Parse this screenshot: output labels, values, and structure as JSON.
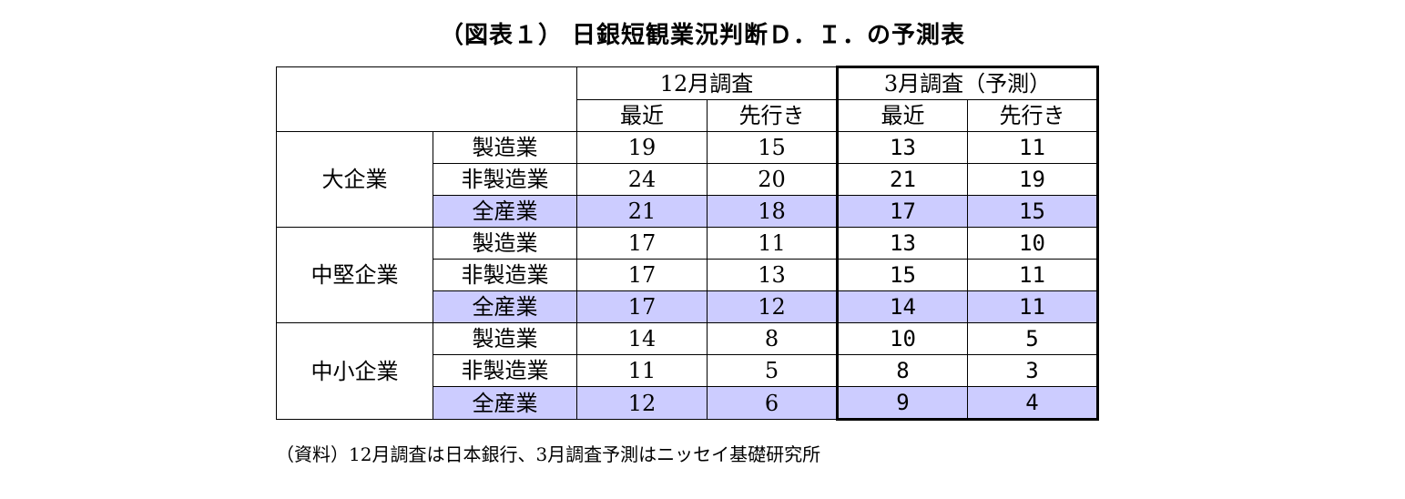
{
  "title": "（図表１） 日銀短観業況判断Ｄ．Ｉ．の予測表",
  "source": "（資料）12月調査は日本銀行、3月調査予測はニッセイ基礎研究所",
  "colors": {
    "total_row_bg": "#ccccff",
    "border": "#000000"
  },
  "chart_data": {
    "type": "table",
    "title": "（図表１） 日銀短観業況判断Ｄ．Ｉ．の予測表",
    "column_groups": [
      {
        "label": "12月調査",
        "columns": [
          "最近",
          "先行き"
        ]
      },
      {
        "label": "3月調査（予測）",
        "columns": [
          "最近",
          "先行き"
        ]
      }
    ],
    "row_groups": [
      {
        "label": "大企業",
        "rows": [
          {
            "label": "製造業",
            "values": [
              "19",
              "15",
              "13",
              "11"
            ]
          },
          {
            "label": "非製造業",
            "values": [
              "24",
              "20",
              "21",
              "19"
            ]
          },
          {
            "label": "全産業",
            "values": [
              "21",
              "18",
              "17",
              "15"
            ]
          }
        ]
      },
      {
        "label": "中堅企業",
        "rows": [
          {
            "label": "製造業",
            "values": [
              "17",
              "11",
              "13",
              "10"
            ]
          },
          {
            "label": "非製造業",
            "values": [
              "17",
              "13",
              "15",
              "11"
            ]
          },
          {
            "label": "全産業",
            "values": [
              "17",
              "12",
              "14",
              "11"
            ]
          }
        ]
      },
      {
        "label": "中小企業",
        "rows": [
          {
            "label": "製造業",
            "values": [
              "14",
              "8",
              "10",
              "5"
            ]
          },
          {
            "label": "非製造業",
            "values": [
              "11",
              "5",
              "8",
              "3"
            ]
          },
          {
            "label": "全産業",
            "values": [
              "12",
              "6",
              "9",
              "4"
            ]
          }
        ]
      }
    ]
  }
}
